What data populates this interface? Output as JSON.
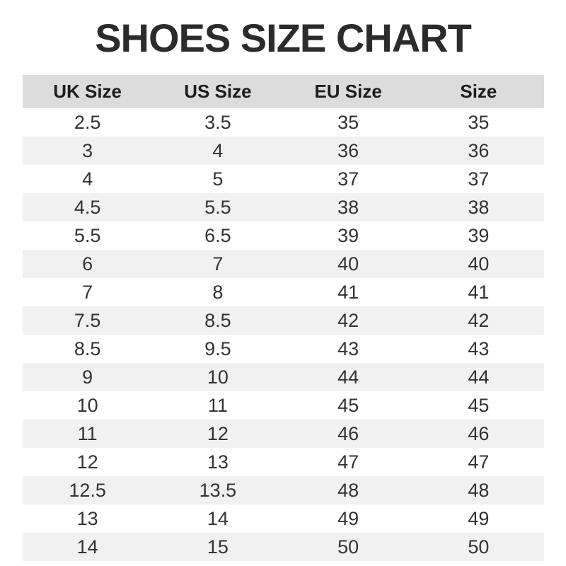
{
  "page": {
    "title": "SHOES SIZE CHART"
  },
  "colors": {
    "header_bg": "#dcdcdc",
    "stripe_bg": "#f1f1f1",
    "row_bg": "#ffffff",
    "title_color": "#2b2b2b",
    "header_text_color": "#1d1d1d",
    "cell_text_color": "#333333"
  },
  "chart_data": {
    "type": "table",
    "title": "SHOES SIZE CHART",
    "columns": [
      "UK Size",
      "US Size",
      "EU Size",
      "Size"
    ],
    "rows": [
      [
        "2.5",
        "3.5",
        "35",
        "35"
      ],
      [
        "3",
        "4",
        "36",
        "36"
      ],
      [
        "4",
        "5",
        "37",
        "37"
      ],
      [
        "4.5",
        "5.5",
        "38",
        "38"
      ],
      [
        "5.5",
        "6.5",
        "39",
        "39"
      ],
      [
        "6",
        "7",
        "40",
        "40"
      ],
      [
        "7",
        "8",
        "41",
        "41"
      ],
      [
        "7.5",
        "8.5",
        "42",
        "42"
      ],
      [
        "8.5",
        "9.5",
        "43",
        "43"
      ],
      [
        "9",
        "10",
        "44",
        "44"
      ],
      [
        "10",
        "11",
        "45",
        "45"
      ],
      [
        "11",
        "12",
        "46",
        "46"
      ],
      [
        "12",
        "13",
        "47",
        "47"
      ],
      [
        "12.5",
        "13.5",
        "48",
        "48"
      ],
      [
        "13",
        "14",
        "49",
        "49"
      ],
      [
        "14",
        "15",
        "50",
        "50"
      ]
    ],
    "layout": {
      "zebra_striping": true,
      "first_data_row_background": "white",
      "columns_equal_width": true,
      "text_alignment": "center"
    }
  }
}
